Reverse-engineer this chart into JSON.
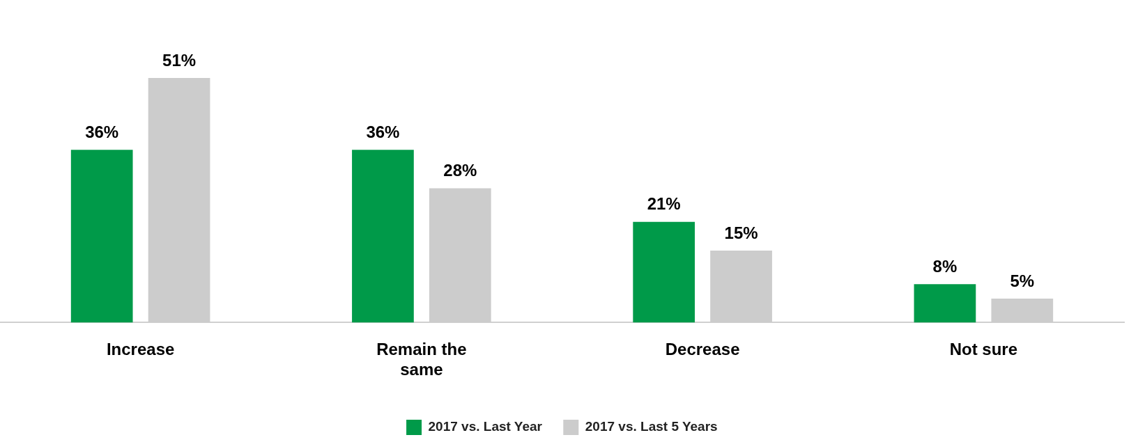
{
  "chart_data": {
    "type": "bar",
    "categories": [
      "Increase",
      "Remain the same",
      "Decrease",
      "Not sure"
    ],
    "series": [
      {
        "name": "2017 vs. Last Year",
        "color": "#009a49",
        "values": [
          36,
          36,
          21,
          8
        ],
        "value_labels": [
          "36%",
          "36%",
          "21%",
          "8%"
        ]
      },
      {
        "name": "2017 vs. Last 5 Years",
        "color": "#cccccc",
        "values": [
          51,
          28,
          15,
          5
        ],
        "value_labels": [
          "51%",
          "28%",
          "15%",
          "5%"
        ]
      }
    ],
    "legend": "bottom",
    "grid": false
  }
}
